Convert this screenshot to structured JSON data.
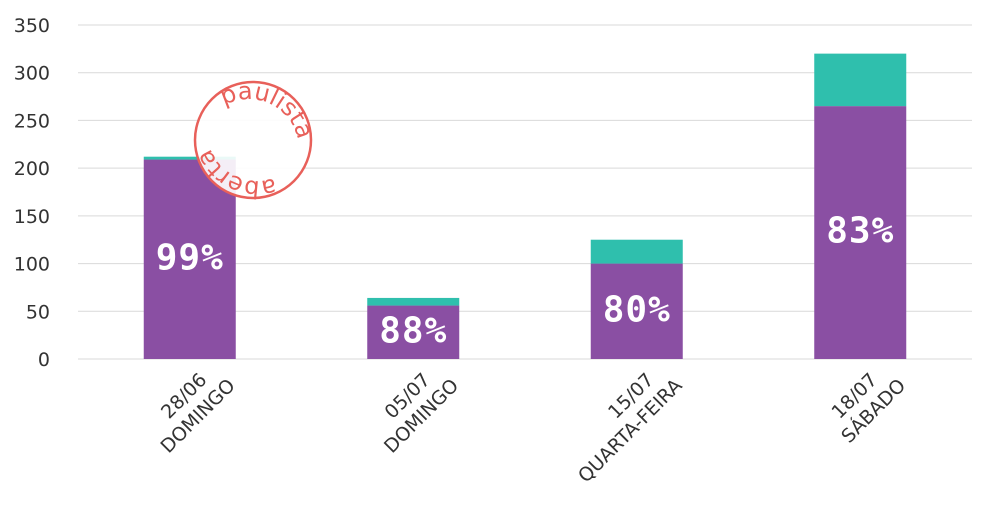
{
  "chart_data": {
    "type": "stacked_bar",
    "categories": [
      [
        "28/06",
        "DOMINGO"
      ],
      [
        "05/07",
        "DOMINGO"
      ],
      [
        "15/07",
        "QUARTA-FEIRA"
      ],
      [
        "18/07",
        "SÁBADO"
      ]
    ],
    "series": [
      {
        "color": "#8a4fa3",
        "values": [
          209,
          56,
          100,
          265
        ]
      },
      {
        "color": "#2fbfad",
        "values": [
          3,
          8,
          25,
          55
        ]
      }
    ],
    "share_labels": [
      "99%",
      "88%",
      "80%",
      "83%"
    ],
    "ylim": [
      0,
      350
    ],
    "yticks": [
      0,
      50,
      100,
      150,
      200,
      250,
      300,
      350
    ],
    "grid": true,
    "stamp": {
      "top": "paulista",
      "bottom": "aberta",
      "color": "#e8605a"
    }
  }
}
